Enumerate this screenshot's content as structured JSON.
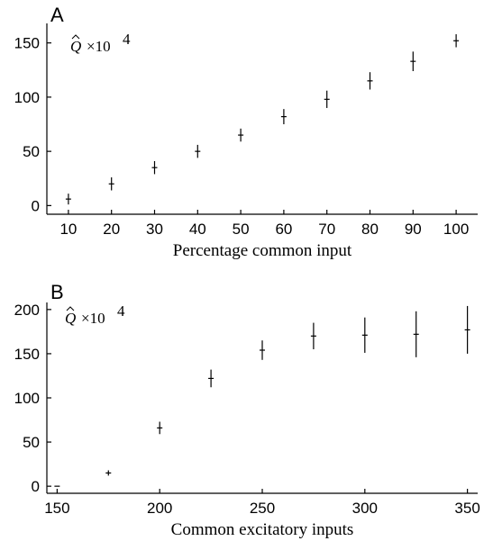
{
  "chart_data": [
    {
      "type": "scatter",
      "panel_label": "A",
      "annotation": {
        "symbol": "Q",
        "times": "×10",
        "exponent": "4"
      },
      "xlabel": "Percentage common input",
      "ylabel": "",
      "xlim": [
        5,
        105
      ],
      "ylim": [
        -8,
        168
      ],
      "xticks": [
        10,
        20,
        30,
        40,
        50,
        60,
        70,
        80,
        90,
        100
      ],
      "yticks": [
        0,
        50,
        100,
        150
      ],
      "grid": false,
      "points": [
        {
          "x": 10,
          "y": 6,
          "err": 5
        },
        {
          "x": 20,
          "y": 20,
          "err": 6
        },
        {
          "x": 30,
          "y": 35,
          "err": 6
        },
        {
          "x": 40,
          "y": 50,
          "err": 6
        },
        {
          "x": 50,
          "y": 65,
          "err": 6
        },
        {
          "x": 60,
          "y": 82,
          "err": 7
        },
        {
          "x": 70,
          "y": 98,
          "err": 8
        },
        {
          "x": 80,
          "y": 115,
          "err": 8
        },
        {
          "x": 90,
          "y": 133,
          "err": 9
        },
        {
          "x": 100,
          "y": 152,
          "err": 6
        }
      ]
    },
    {
      "type": "scatter",
      "panel_label": "B",
      "annotation": {
        "symbol": "Q",
        "times": "×10",
        "exponent": "4"
      },
      "xlabel": "Common excitatory inputs",
      "ylabel": "",
      "xlim": [
        145,
        355
      ],
      "ylim": [
        -8,
        208
      ],
      "xticks": [
        150,
        200,
        250,
        300,
        350
      ],
      "yticks": [
        0,
        50,
        100,
        150,
        200
      ],
      "grid": false,
      "points": [
        {
          "x": 150,
          "y": 0,
          "err": 0
        },
        {
          "x": 175,
          "y": 15,
          "err": 3
        },
        {
          "x": 200,
          "y": 66,
          "err": 7
        },
        {
          "x": 225,
          "y": 122,
          "err": 10
        },
        {
          "x": 250,
          "y": 154,
          "err": 11
        },
        {
          "x": 275,
          "y": 170,
          "err": 15
        },
        {
          "x": 300,
          "y": 171,
          "err": 20
        },
        {
          "x": 325,
          "y": 172,
          "err": 26
        },
        {
          "x": 350,
          "y": 177,
          "err": 27
        }
      ]
    }
  ]
}
